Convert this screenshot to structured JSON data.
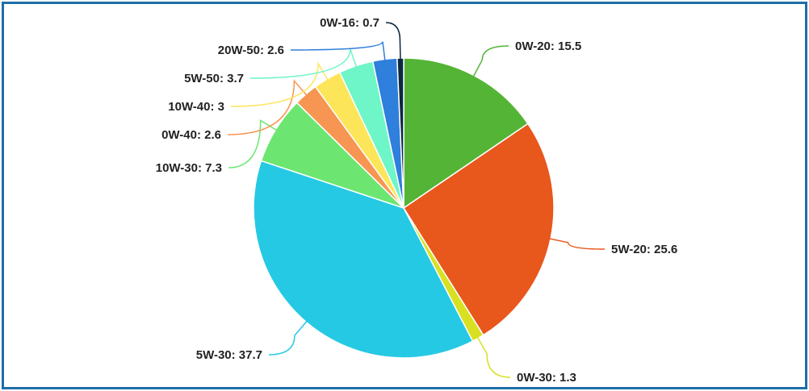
{
  "chart_data": {
    "type": "pie",
    "start": "top",
    "direction": "clockwise",
    "legend": "none",
    "slices": [
      {
        "label": "0W-20",
        "value": 15.5,
        "color": "#54b435"
      },
      {
        "label": "5W-20",
        "value": 25.6,
        "color": "#e8571c"
      },
      {
        "label": "0W-30",
        "value": 1.3,
        "color": "#d9e021"
      },
      {
        "label": "5W-30",
        "value": 37.7,
        "color": "#26c9e3"
      },
      {
        "label": "10W-30",
        "value": 7.3,
        "color": "#6ce670"
      },
      {
        "label": "0W-40",
        "value": 2.6,
        "color": "#f79552"
      },
      {
        "label": "10W-40",
        "value": 3,
        "color": "#fde55a"
      },
      {
        "label": "5W-50",
        "value": 3.7,
        "color": "#6ef5c8"
      },
      {
        "label": "20W-50",
        "value": 2.6,
        "color": "#2f7fdc"
      },
      {
        "label": "0W-16",
        "value": 0.7,
        "color": "#0d2840"
      }
    ]
  }
}
